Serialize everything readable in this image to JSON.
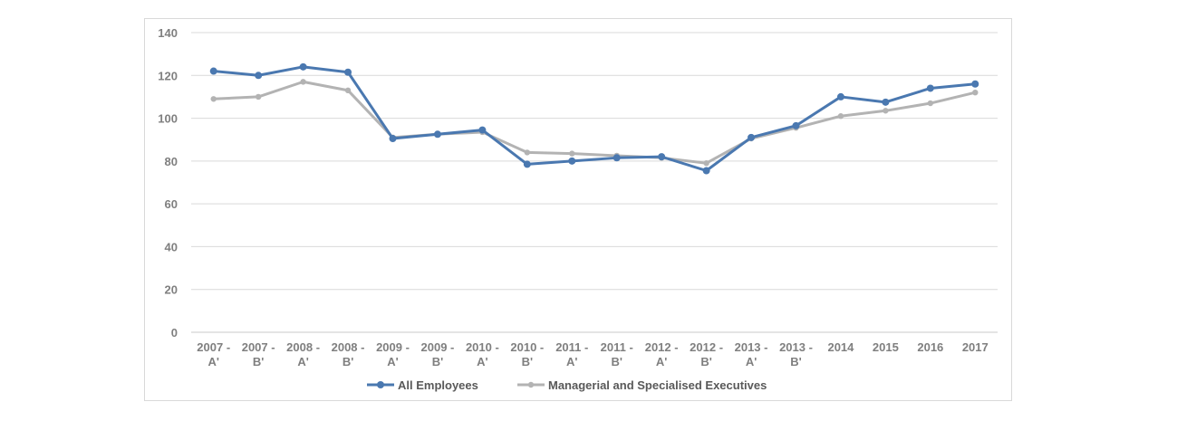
{
  "chart_data": {
    "type": "line",
    "title": "",
    "xlabel": "",
    "ylabel": "",
    "ylim": [
      0,
      140
    ],
    "yticks": [
      0,
      20,
      40,
      60,
      80,
      100,
      120,
      140
    ],
    "grid": true,
    "legend_position": "bottom",
    "categories": [
      [
        "2007 -",
        "A'"
      ],
      [
        "2007 -",
        "B'"
      ],
      [
        "2008 -",
        "A'"
      ],
      [
        "2008 -",
        "B'"
      ],
      [
        "2009 -",
        "A'"
      ],
      [
        "2009 -",
        "B'"
      ],
      [
        "2010 -",
        "A'"
      ],
      [
        "2010 -",
        "B'"
      ],
      [
        "2011 -",
        "A'"
      ],
      [
        "2011 -",
        "B'"
      ],
      [
        "2012 -",
        "A'"
      ],
      [
        "2012 -",
        "B'"
      ],
      [
        "2013 -",
        "A'"
      ],
      [
        "2013 -",
        "B'"
      ],
      [
        "2014"
      ],
      [
        "2015"
      ],
      [
        "2016"
      ],
      [
        "2017"
      ]
    ],
    "series": [
      {
        "name": "All Employees",
        "color": "#4a78b0",
        "values": [
          122,
          120,
          124,
          121.5,
          90.5,
          92.5,
          94.5,
          78.5,
          80,
          81.5,
          82,
          75.5,
          91,
          96.5,
          110,
          107.5,
          114,
          116
        ]
      },
      {
        "name": "Managerial and Specialised Executives",
        "color": "#b3b3b3",
        "values": [
          109,
          110,
          117,
          113,
          91,
          92.5,
          93.5,
          84,
          83.5,
          82.5,
          81.5,
          79,
          90.5,
          95.5,
          101,
          103.5,
          107,
          112
        ]
      }
    ]
  }
}
